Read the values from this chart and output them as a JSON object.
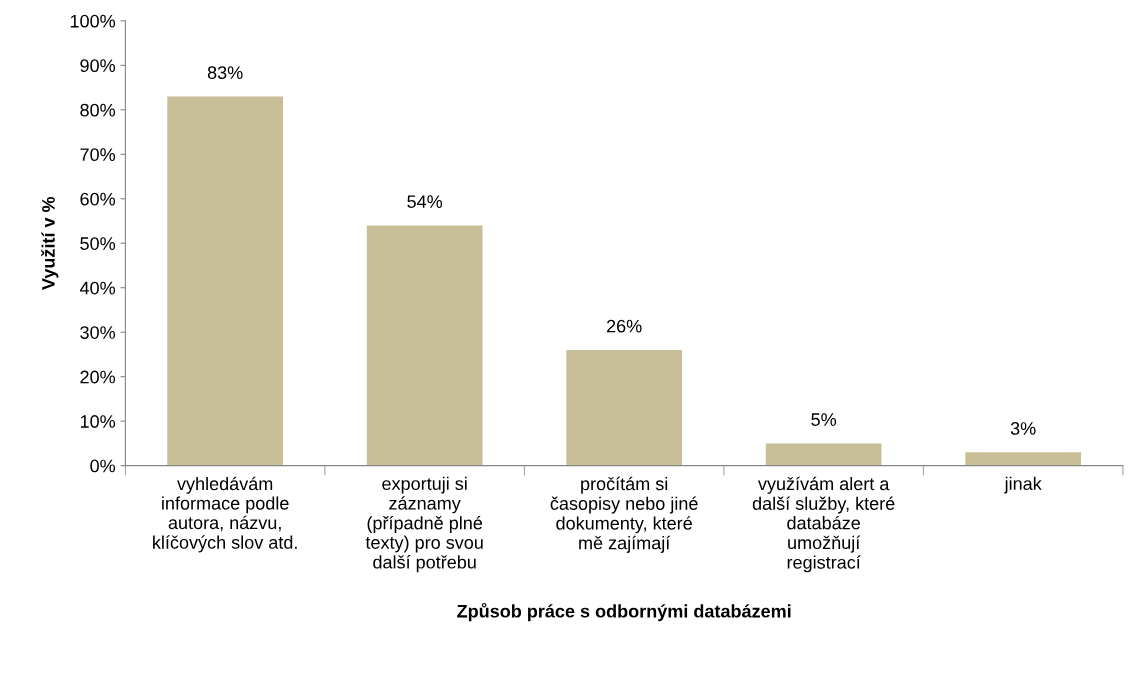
{
  "chart_data": {
    "type": "bar",
    "xlabel": "Způsob práce s odbornými databázemi",
    "ylabel": "Využití v %",
    "categories": [
      "vyhledávám\ninformace podle\nautora, názvu,\nklíčových slov atd.",
      "exportuji si\nzáznamy\n(případně plné\ntexty) pro svou\ndalší potřebu",
      "pročítám si\nčasopisy nebo jiné\ndokumenty, které\nmě zajímají",
      "využívám alert a\ndalší služby, které\ndatabáze\numožňují\nregistrací",
      "jinak"
    ],
    "values": [
      83,
      54,
      26,
      5,
      3
    ],
    "value_labels": [
      "83%",
      "54%",
      "26%",
      "5%",
      "3%"
    ],
    "color": "#c8be97",
    "ylim": [
      0,
      100
    ],
    "yticks": [
      {
        "value": 0,
        "label": "0%"
      },
      {
        "value": 10,
        "label": "10%"
      },
      {
        "value": 20,
        "label": "20%"
      },
      {
        "value": 30,
        "label": "30%"
      },
      {
        "value": 40,
        "label": "40%"
      },
      {
        "value": 50,
        "label": "50%"
      },
      {
        "value": 60,
        "label": "60%"
      },
      {
        "value": 70,
        "label": "70%"
      },
      {
        "value": 80,
        "label": "80%"
      },
      {
        "value": 90,
        "label": "90%"
      },
      {
        "value": 100,
        "label": "100%"
      }
    ],
    "grid": false,
    "legend": false
  }
}
